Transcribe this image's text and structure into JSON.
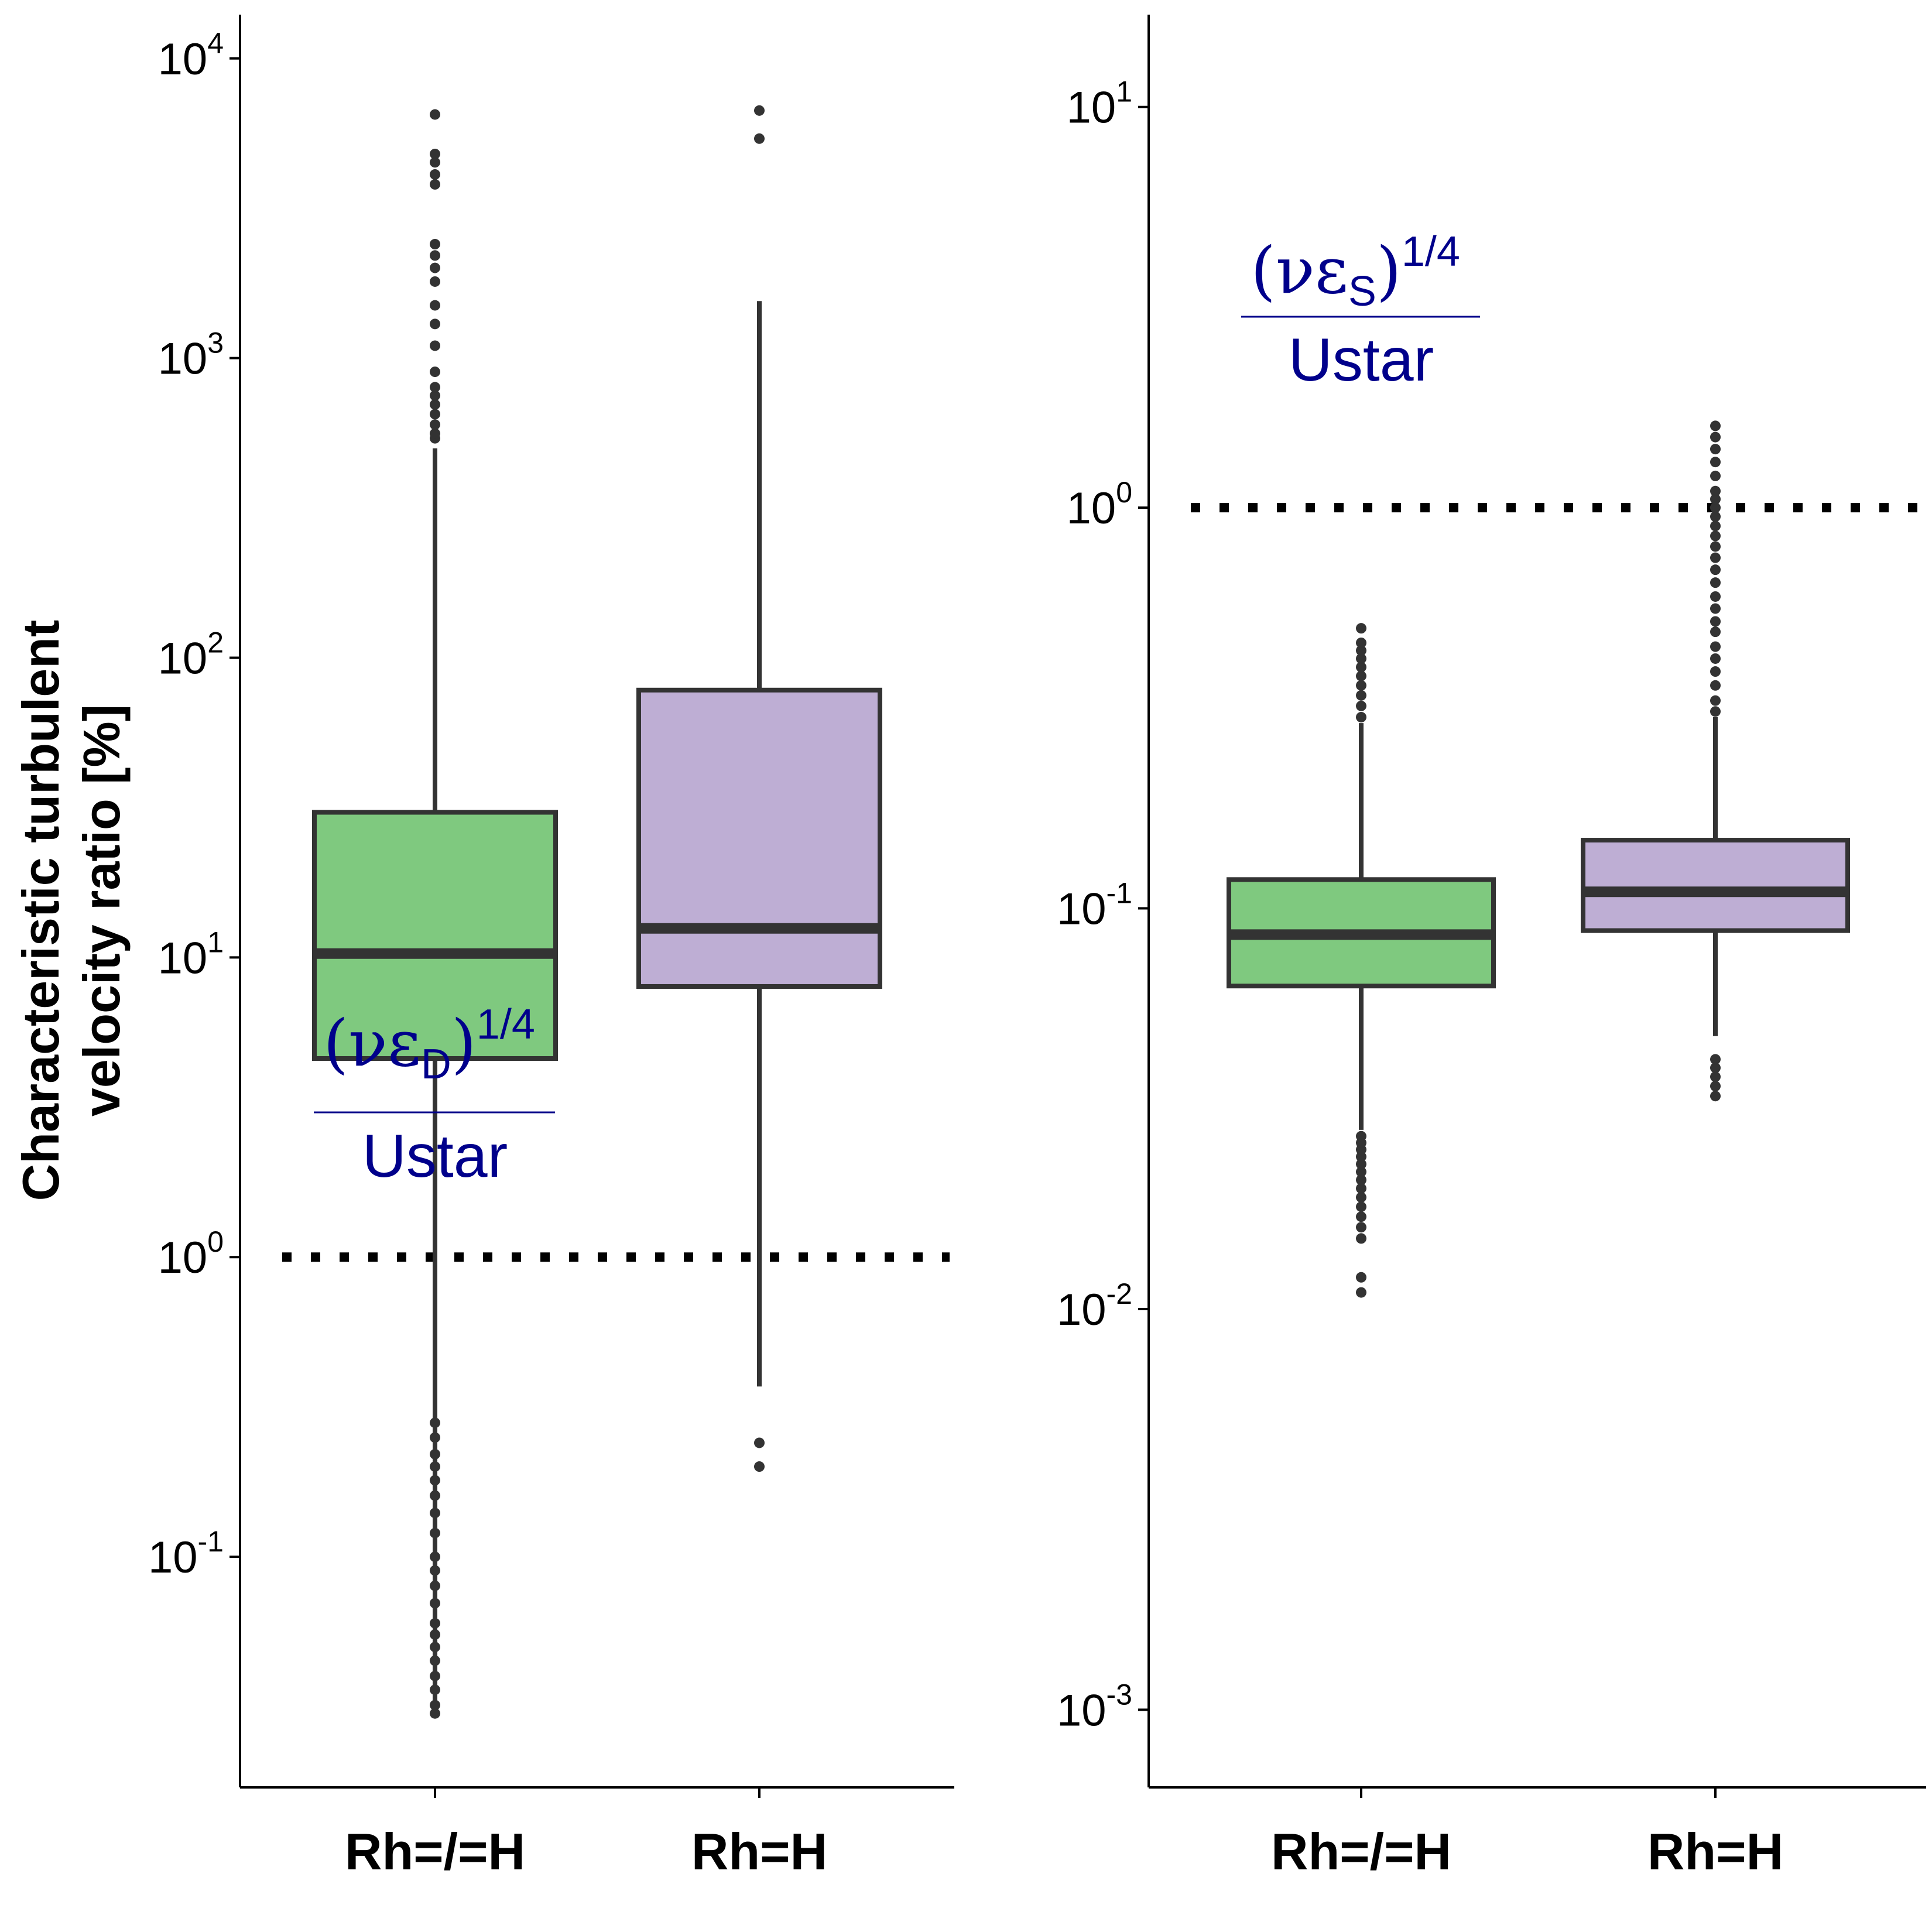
{
  "figure": {
    "ylabel_lines": [
      "Characteristic turbulent",
      "velocity ratio [%]"
    ]
  },
  "colors": {
    "Rh=/=H": "#7fc97f",
    "Rh=H": "#beaed4",
    "box_line": "#333333",
    "reference_line": "#000000",
    "annotation": "#00008b"
  },
  "chart_data": [
    {
      "type": "box",
      "panel": "left",
      "ylabel": "Characteristic turbulent velocity ratio [%]",
      "xlabel": "",
      "yscale": "log",
      "ylim": [
        0.017,
        14000
      ],
      "yticks": [
        {
          "value": 0.1,
          "base": "10",
          "exp": "-1"
        },
        {
          "value": 1,
          "base": "10",
          "exp": "0"
        },
        {
          "value": 10,
          "base": "10",
          "exp": "1"
        },
        {
          "value": 100,
          "base": "10",
          "exp": "2"
        },
        {
          "value": 1000,
          "base": "10",
          "exp": "3"
        },
        {
          "value": 10000,
          "base": "10",
          "exp": "4"
        }
      ],
      "categories": [
        "Rh=/=H",
        "Rh=H"
      ],
      "boxes": [
        {
          "category": "Rh=/=H",
          "whisker_low": 0.03,
          "q1": 4.6,
          "median": 10.3,
          "q3": 30.5,
          "whisker_high": 500,
          "outliers": [
            0.03,
            0.032,
            0.036,
            0.04,
            0.045,
            0.05,
            0.055,
            0.06,
            0.07,
            0.08,
            0.09,
            0.1,
            0.12,
            0.14,
            0.16,
            0.18,
            0.2,
            0.22,
            0.25,
            0.28,
            540,
            560,
            600,
            650,
            700,
            750,
            800,
            900,
            1100,
            1300,
            1500,
            1800,
            2000,
            2200,
            2400,
            3800,
            4100,
            4500,
            4800,
            6500
          ]
        },
        {
          "category": "Rh=H",
          "whisker_low": 0.37,
          "q1": 8.0,
          "median": 12.5,
          "q3": 78,
          "whisker_high": 1550,
          "outliers": [
            0.2,
            0.24,
            5400,
            6700
          ]
        }
      ],
      "reference_line": {
        "y": 1,
        "style": "dotted"
      },
      "annotation": {
        "numerator_symbol": "νε",
        "subscript": "D",
        "exponent": "1/4",
        "denominator": "Ustar"
      },
      "grid": false,
      "legend": "none"
    },
    {
      "type": "box",
      "panel": "right",
      "ylabel": "",
      "xlabel": "",
      "yscale": "log",
      "ylim": [
        0.00064,
        17
      ],
      "yticks": [
        {
          "value": 0.001,
          "base": "10",
          "exp": "-3"
        },
        {
          "value": 0.01,
          "base": "10",
          "exp": "-2"
        },
        {
          "value": 0.1,
          "base": "10",
          "exp": "-1"
        },
        {
          "value": 1,
          "base": "10",
          "exp": "0"
        },
        {
          "value": 10,
          "base": "10",
          "exp": "1"
        }
      ],
      "categories": [
        "Rh=/=H",
        "Rh=H"
      ],
      "boxes": [
        {
          "category": "Rh=/=H",
          "whisker_low": 0.028,
          "q1": 0.064,
          "median": 0.086,
          "q3": 0.118,
          "whisker_high": 0.29,
          "outliers": [
            0.011,
            0.012,
            0.015,
            0.016,
            0.017,
            0.018,
            0.019,
            0.02,
            0.021,
            0.022,
            0.023,
            0.024,
            0.025,
            0.026,
            0.027,
            0.3,
            0.32,
            0.34,
            0.36,
            0.38,
            0.4,
            0.42,
            0.44,
            0.46,
            0.5
          ]
        },
        {
          "category": "Rh=H",
          "whisker_low": 0.048,
          "q1": 0.088,
          "median": 0.11,
          "q3": 0.148,
          "whisker_high": 0.3,
          "outliers": [
            0.034,
            0.036,
            0.038,
            0.04,
            0.042,
            0.31,
            0.33,
            0.36,
            0.39,
            0.42,
            0.45,
            0.49,
            0.52,
            0.56,
            0.6,
            0.65,
            0.7,
            0.75,
            0.8,
            0.85,
            0.9,
            0.95,
            1.0,
            1.05,
            1.1,
            1.2,
            1.3,
            1.4,
            1.5,
            1.6
          ]
        }
      ],
      "reference_line": {
        "y": 1,
        "style": "dotted"
      },
      "annotation": {
        "numerator_symbol": "νε",
        "subscript": "S",
        "exponent": "1/4",
        "denominator": "Ustar"
      },
      "grid": false,
      "legend": "none"
    }
  ]
}
